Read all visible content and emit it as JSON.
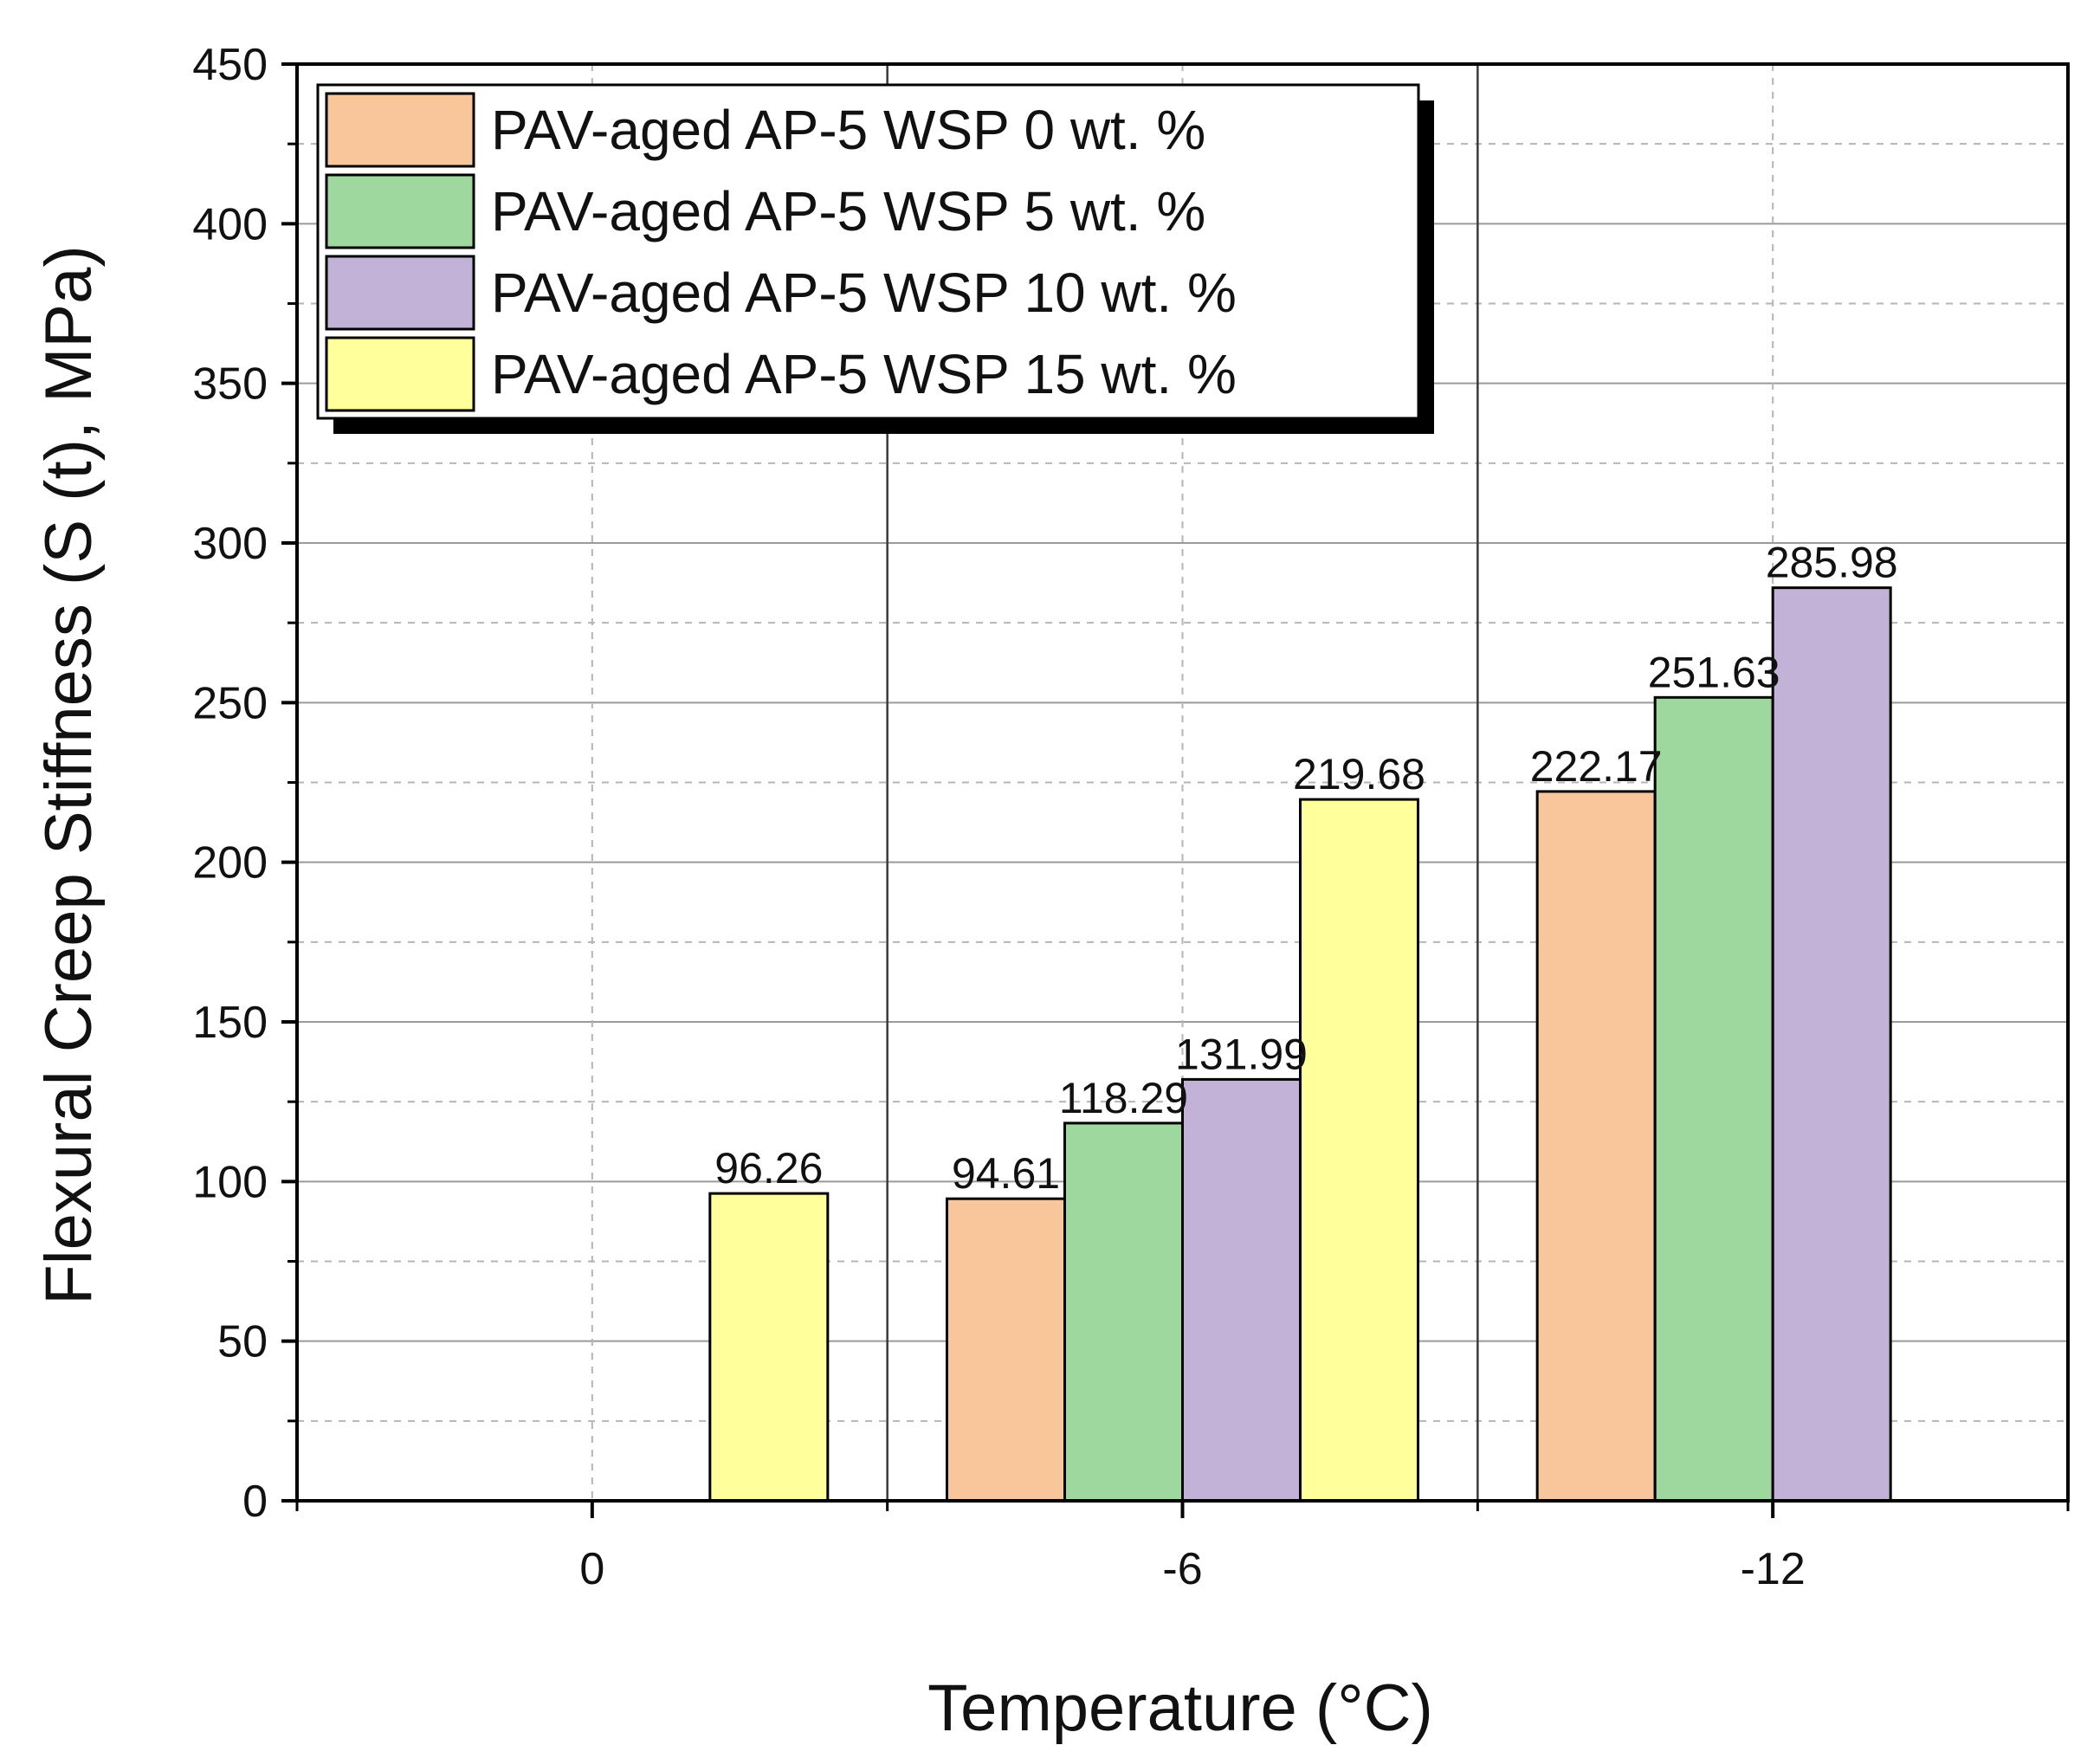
{
  "chart_data": {
    "type": "bar",
    "title": "",
    "xlabel": "Temperature (°C)",
    "ylabel": "Flexural Creep Stiffness (S (t), MPa)",
    "categories": [
      "0",
      "-6",
      "-12"
    ],
    "ylim": [
      0,
      450
    ],
    "yticks": [
      0,
      50,
      100,
      150,
      200,
      250,
      300,
      350,
      400,
      450
    ],
    "grid": true,
    "legend_position": "top-left",
    "series": [
      {
        "name": "PAV-aged AP-5 WSP 0 wt. %",
        "color": "#f9c59a",
        "values": [
          null,
          94.61,
          222.17
        ],
        "labels": [
          "",
          "94.61",
          "222.17"
        ]
      },
      {
        "name": "PAV-aged AP-5 WSP 5 wt. %",
        "color": "#9fd89f",
        "values": [
          null,
          118.29,
          251.63
        ],
        "labels": [
          "",
          "118.29",
          "251.63"
        ]
      },
      {
        "name": "PAV-aged AP-5 WSP 10 wt. %",
        "color": "#c2b2d7",
        "values": [
          null,
          131.99,
          285.98
        ],
        "labels": [
          "",
          "131.99",
          "285.98"
        ]
      },
      {
        "name": "PAV-aged AP-5 WSP 15 wt. %",
        "color": "#ffff9c",
        "values": [
          96.26,
          219.68,
          null
        ],
        "labels": [
          "96.26",
          "219.68",
          ""
        ]
      }
    ]
  }
}
